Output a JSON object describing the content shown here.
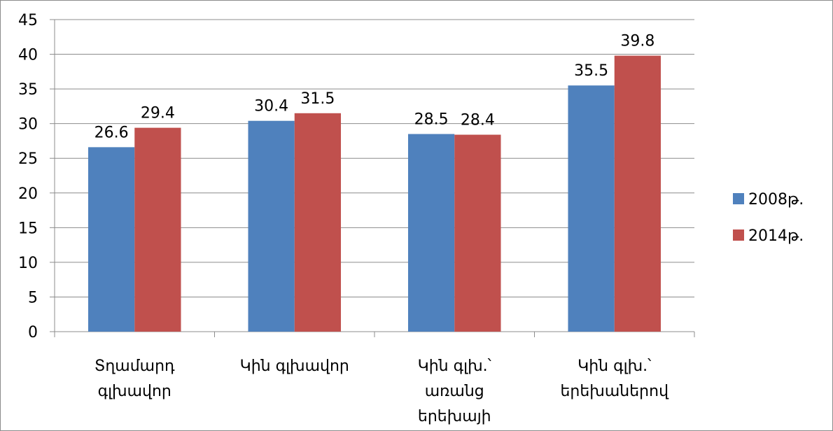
{
  "chart_data": {
    "type": "bar",
    "title": "",
    "xlabel": "",
    "ylabel": "",
    "ylim": [
      0,
      45
    ],
    "ytick_step": 5,
    "grid": true,
    "legend_position": "right",
    "categories": [
      [
        "Տղամարդ",
        "գլխավոր"
      ],
      [
        "Կին գլխավոր"
      ],
      [
        "Կին գլխ.՝",
        "առանց",
        "երեխայի"
      ],
      [
        "Կին գլխ.՝",
        "երեխաներով"
      ]
    ],
    "series": [
      {
        "name": "2008թ.",
        "color": "#4f81bd",
        "values": [
          26.6,
          30.4,
          28.5,
          35.5
        ]
      },
      {
        "name": "2014թ.",
        "color": "#c0504d",
        "values": [
          29.4,
          31.5,
          28.4,
          39.8
        ]
      }
    ]
  }
}
